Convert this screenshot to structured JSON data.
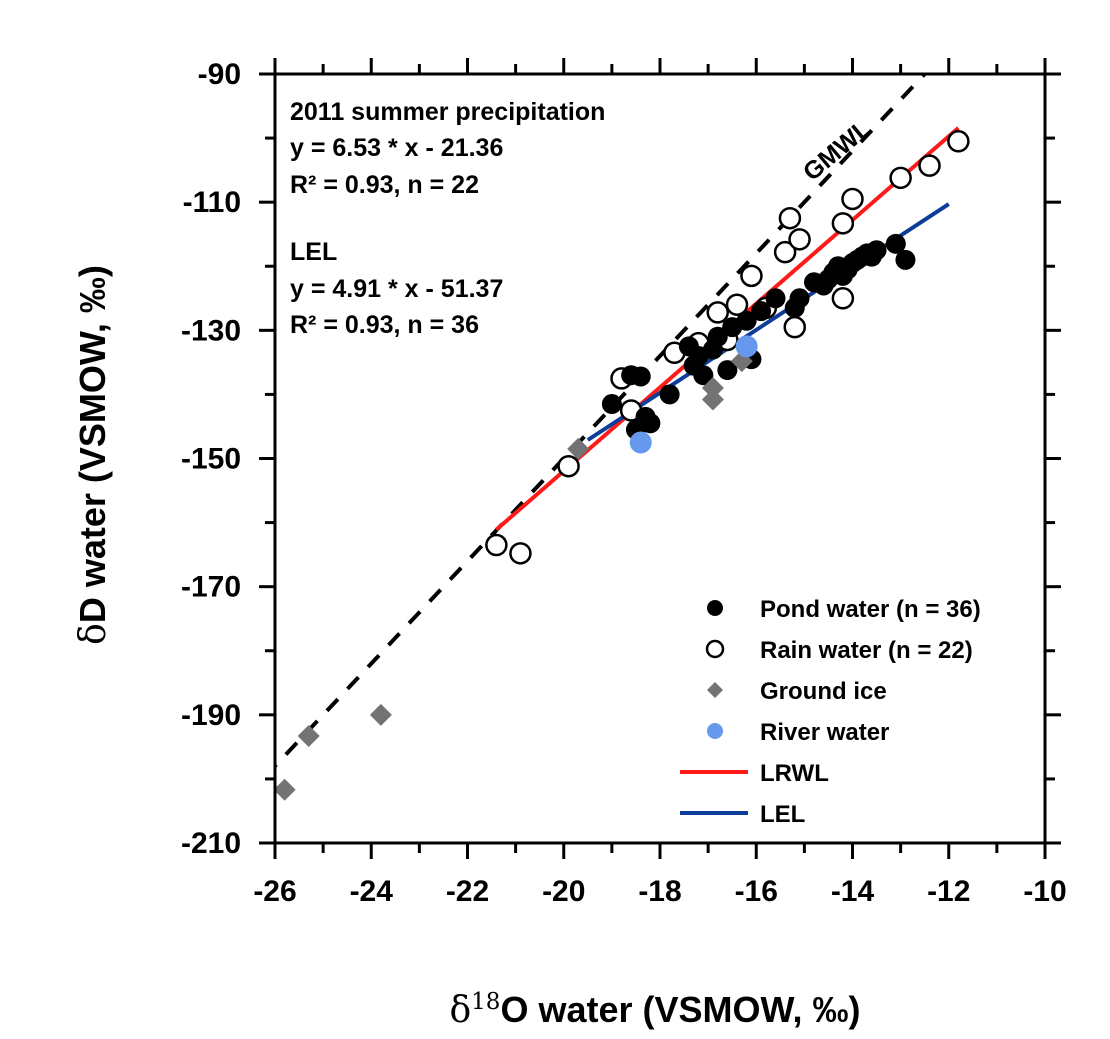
{
  "chart_data": {
    "type": "scatter",
    "title": "",
    "xlabel": {
      "prefix": "δ",
      "sup": "18",
      "main": "O water (VSMOW, ‰)"
    },
    "ylabel": {
      "prefix": "δ",
      "main": "D water (VSMOW, ‰)"
    },
    "xlim": [
      -26,
      -10
    ],
    "ylim": [
      -210,
      -90
    ],
    "xticks": [
      -26,
      -24,
      -22,
      -20,
      -18,
      -16,
      -14,
      -12,
      -10
    ],
    "yticks": [
      -210,
      -190,
      -170,
      -150,
      -130,
      -110,
      -90
    ],
    "grid": false,
    "legend_position": "bottom-right",
    "annotations": {
      "precip_title": "2011 summer precipitation",
      "precip_eq": "y = 6.53 * x - 21.36",
      "precip_stats": "R² = 0.93, n = 22",
      "lel_title": "LEL",
      "lel_eq": "y = 4.91 * x - 51.37",
      "lel_stats": "R² = 0.93, n = 36",
      "gmwl_label": "GMWL"
    },
    "series": [
      {
        "name": "Pond water (n = 36)",
        "marker": "filled-circle",
        "color": "#000000",
        "points": [
          [
            -19.0,
            -141.5
          ],
          [
            -18.6,
            -137.0
          ],
          [
            -18.4,
            -137.2
          ],
          [
            -18.3,
            -143.5
          ],
          [
            -18.2,
            -144.5
          ],
          [
            -18.5,
            -145.5
          ],
          [
            -17.8,
            -140.0
          ],
          [
            -17.4,
            -132.5
          ],
          [
            -17.2,
            -134.0
          ],
          [
            -17.1,
            -137.0
          ],
          [
            -16.9,
            -133.0
          ],
          [
            -16.6,
            -136.2
          ],
          [
            -16.5,
            -129.5
          ],
          [
            -16.2,
            -128.5
          ],
          [
            -16.1,
            -134.5
          ],
          [
            -15.6,
            -125.0
          ],
          [
            -15.2,
            -126.5
          ],
          [
            -15.1,
            -125.0
          ],
          [
            -14.8,
            -122.5
          ],
          [
            -14.6,
            -123.0
          ],
          [
            -14.5,
            -122.0
          ],
          [
            -14.4,
            -121.0
          ],
          [
            -14.3,
            -120.0
          ],
          [
            -14.2,
            -121.5
          ],
          [
            -14.1,
            -120.5
          ],
          [
            -14.0,
            -119.5
          ],
          [
            -13.9,
            -119.0
          ],
          [
            -13.8,
            -118.5
          ],
          [
            -13.7,
            -118.0
          ],
          [
            -13.6,
            -118.5
          ],
          [
            -13.5,
            -117.5
          ],
          [
            -13.1,
            -116.5
          ],
          [
            -12.9,
            -119.0
          ],
          [
            -16.8,
            -131.0
          ],
          [
            -17.3,
            -135.5
          ],
          [
            -15.9,
            -127.0
          ]
        ]
      },
      {
        "name": "Rain water (n = 22)",
        "marker": "open-circle",
        "color": "#000000",
        "points": [
          [
            -21.4,
            -163.5
          ],
          [
            -20.9,
            -164.8
          ],
          [
            -19.9,
            -151.2
          ],
          [
            -18.8,
            -137.5
          ],
          [
            -18.6,
            -142.5
          ],
          [
            -17.7,
            -133.5
          ],
          [
            -16.8,
            -127.2
          ],
          [
            -16.4,
            -126.0
          ],
          [
            -16.1,
            -121.5
          ],
          [
            -15.4,
            -117.8
          ],
          [
            -15.3,
            -112.5
          ],
          [
            -15.1,
            -115.8
          ],
          [
            -15.2,
            -129.5
          ],
          [
            -14.2,
            -113.3
          ],
          [
            -14.0,
            -109.5
          ],
          [
            -14.2,
            -125.0
          ],
          [
            -13.0,
            -106.2
          ],
          [
            -12.4,
            -104.3
          ],
          [
            -11.8,
            -100.5
          ],
          [
            -16.6,
            -131.5
          ],
          [
            -17.2,
            -132.0
          ],
          [
            -15.8,
            -126.5
          ]
        ]
      },
      {
        "name": "Ground ice",
        "marker": "diamond",
        "color": "#737373",
        "points": [
          [
            -25.8,
            -201.7
          ],
          [
            -25.3,
            -193.3
          ],
          [
            -23.8,
            -190.0
          ],
          [
            -19.7,
            -148.5
          ],
          [
            -16.9,
            -140.8
          ],
          [
            -16.9,
            -139.0
          ],
          [
            -16.3,
            -134.8
          ]
        ]
      },
      {
        "name": "River water",
        "marker": "filled-circle",
        "color": "#6699ee",
        "points": [
          [
            -18.4,
            -147.5
          ],
          [
            -16.2,
            -132.5
          ]
        ]
      }
    ],
    "lines": [
      {
        "name": "LRWL",
        "color": "#ff1a1a",
        "slope": 6.53,
        "intercept": -21.36,
        "x_range": [
          -21.4,
          -11.8
        ],
        "in_legend": true
      },
      {
        "name": "LEL",
        "color": "#0d3d99",
        "slope": 4.91,
        "intercept": -51.37,
        "x_range": [
          -19.5,
          -12.0
        ],
        "in_legend": true
      },
      {
        "name": "GMWL",
        "color": "#000000",
        "dashed": true,
        "slope": 8,
        "intercept": 10,
        "x_range": [
          -26.2,
          -12.5
        ],
        "in_legend": false
      }
    ]
  }
}
